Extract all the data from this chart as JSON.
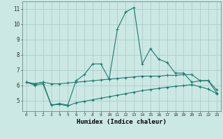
{
  "xlabel": "Humidex (Indice chaleur)",
  "x": [
    0,
    1,
    2,
    3,
    4,
    5,
    6,
    7,
    8,
    9,
    10,
    11,
    12,
    13,
    14,
    15,
    16,
    17,
    18,
    19,
    20,
    21,
    22,
    23
  ],
  "line1": [
    6.2,
    6.1,
    6.2,
    4.7,
    4.8,
    4.7,
    6.3,
    6.7,
    7.4,
    7.4,
    6.4,
    9.7,
    10.8,
    11.1,
    7.4,
    8.4,
    7.7,
    7.5,
    6.8,
    6.8,
    6.2,
    6.3,
    6.3,
    5.5
  ],
  "line2": [
    6.2,
    6.1,
    6.2,
    6.1,
    6.1,
    6.15,
    6.2,
    6.25,
    6.3,
    6.35,
    6.4,
    6.45,
    6.5,
    6.55,
    6.6,
    6.6,
    6.6,
    6.65,
    6.65,
    6.7,
    6.7,
    6.3,
    6.3,
    5.7
  ],
  "line3": [
    6.2,
    6.0,
    6.1,
    4.7,
    4.75,
    4.65,
    4.85,
    4.95,
    5.05,
    5.15,
    5.25,
    5.35,
    5.45,
    5.55,
    5.65,
    5.72,
    5.8,
    5.87,
    5.93,
    5.98,
    6.05,
    5.9,
    5.75,
    5.45
  ],
  "line_color": "#1a7a6e",
  "bg_color": "#cce8e4",
  "grid_color": "#b0ccca",
  "ylim": [
    4.3,
    11.5
  ],
  "yticks": [
    5,
    6,
    7,
    8,
    9,
    10,
    11
  ],
  "xticks": [
    0,
    1,
    2,
    3,
    4,
    5,
    6,
    7,
    8,
    9,
    10,
    11,
    12,
    13,
    14,
    15,
    16,
    17,
    18,
    19,
    20,
    21,
    22,
    23
  ]
}
